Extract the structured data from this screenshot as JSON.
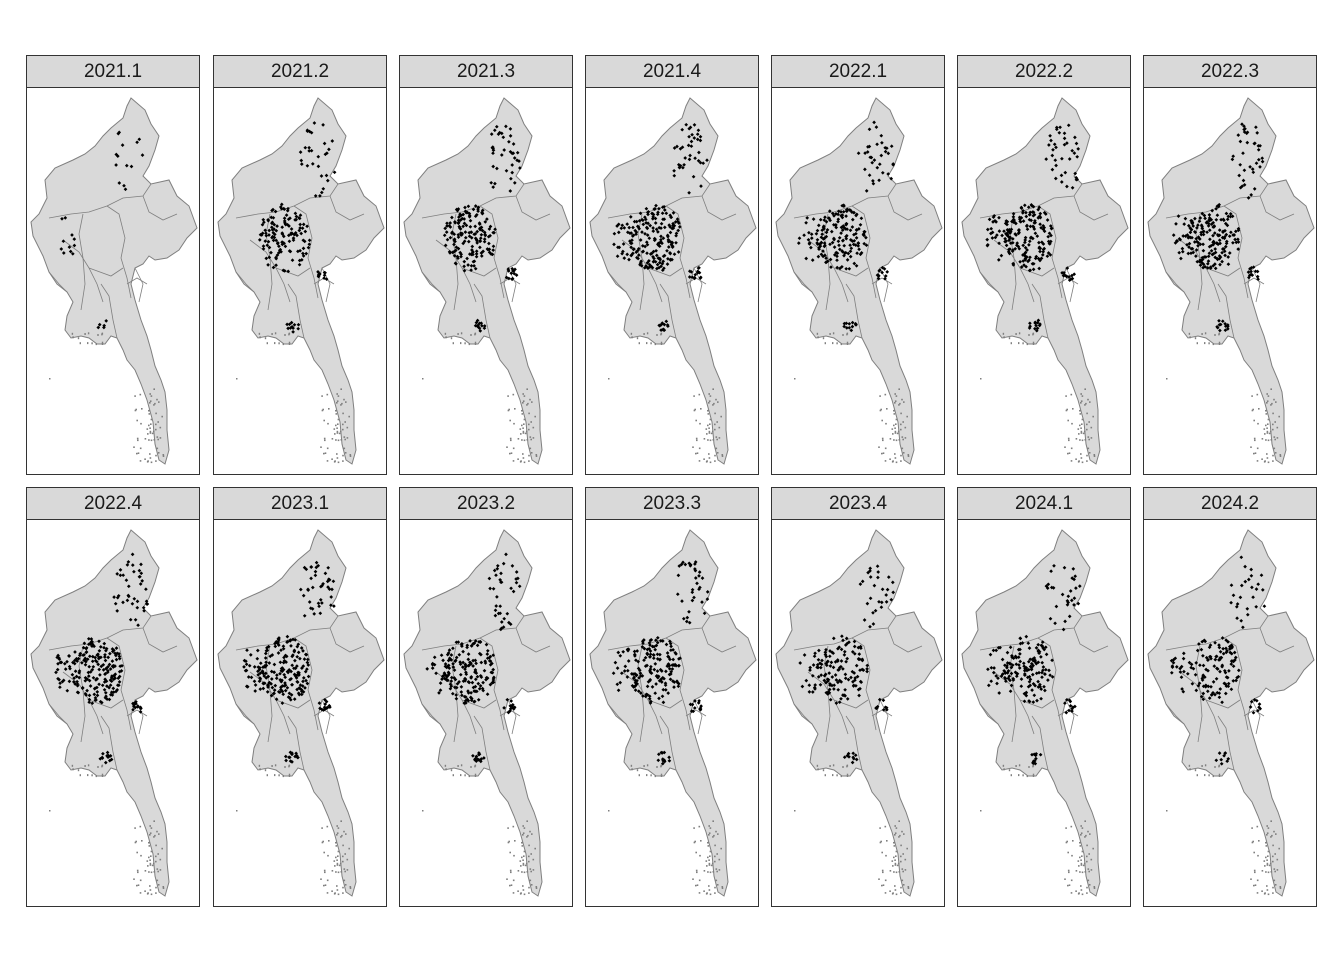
{
  "facets": [
    {
      "label": "2021.1",
      "density": 0.35,
      "hotspots": [
        "north",
        "west",
        "south"
      ]
    },
    {
      "label": "2021.2",
      "density": 0.75,
      "hotspots": [
        "north",
        "sagaing",
        "east",
        "south"
      ]
    },
    {
      "label": "2021.3",
      "density": 0.95,
      "hotspots": [
        "north",
        "sagaing",
        "east",
        "south"
      ]
    },
    {
      "label": "2021.4",
      "density": 1.0,
      "hotspots": [
        "north",
        "sagaing",
        "west",
        "east",
        "south"
      ]
    },
    {
      "label": "2022.1",
      "density": 0.85,
      "hotspots": [
        "north",
        "sagaing",
        "west",
        "east",
        "south"
      ]
    },
    {
      "label": "2022.2",
      "density": 0.95,
      "hotspots": [
        "north",
        "sagaing",
        "west",
        "east",
        "south"
      ]
    },
    {
      "label": "2022.3",
      "density": 0.95,
      "hotspots": [
        "north",
        "sagaing",
        "west",
        "east",
        "south"
      ]
    },
    {
      "label": "2022.4",
      "density": 1.0,
      "hotspots": [
        "north",
        "sagaing",
        "west",
        "east",
        "south"
      ]
    },
    {
      "label": "2023.1",
      "density": 1.0,
      "hotspots": [
        "north",
        "sagaing",
        "west",
        "east",
        "south"
      ]
    },
    {
      "label": "2023.2",
      "density": 0.9,
      "hotspots": [
        "north",
        "sagaing",
        "west",
        "east",
        "south"
      ]
    },
    {
      "label": "2023.3",
      "density": 0.85,
      "hotspots": [
        "north",
        "sagaing",
        "west",
        "east",
        "south"
      ]
    },
    {
      "label": "2023.4",
      "density": 0.7,
      "hotspots": [
        "north",
        "sagaing",
        "west",
        "east",
        "south"
      ]
    },
    {
      "label": "2024.1",
      "density": 0.75,
      "hotspots": [
        "north",
        "sagaing",
        "west",
        "east",
        "south"
      ]
    },
    {
      "label": "2024.2",
      "density": 0.65,
      "hotspots": [
        "north",
        "sagaing",
        "west",
        "east",
        "south"
      ]
    }
  ],
  "colors": {
    "land": "#d9d9d9",
    "border": "#7f7f7f",
    "points": "#000000",
    "strip": "#d9d9d9"
  }
}
